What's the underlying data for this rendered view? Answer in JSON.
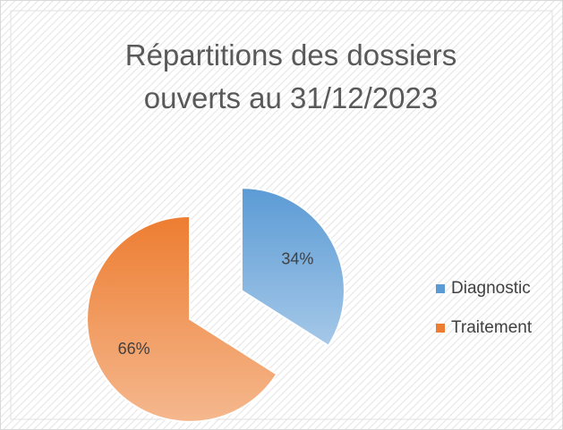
{
  "chart_data": {
    "type": "pie",
    "title": "Répartitions des dossiers ouverts au 31/12/2023",
    "categories": [
      "Diagnostic",
      "Traitement"
    ],
    "values": [
      34,
      66
    ],
    "value_labels": [
      "34%",
      "66%"
    ],
    "colors": [
      "#5b9bd5",
      "#ed7d31"
    ],
    "legend": "right"
  }
}
